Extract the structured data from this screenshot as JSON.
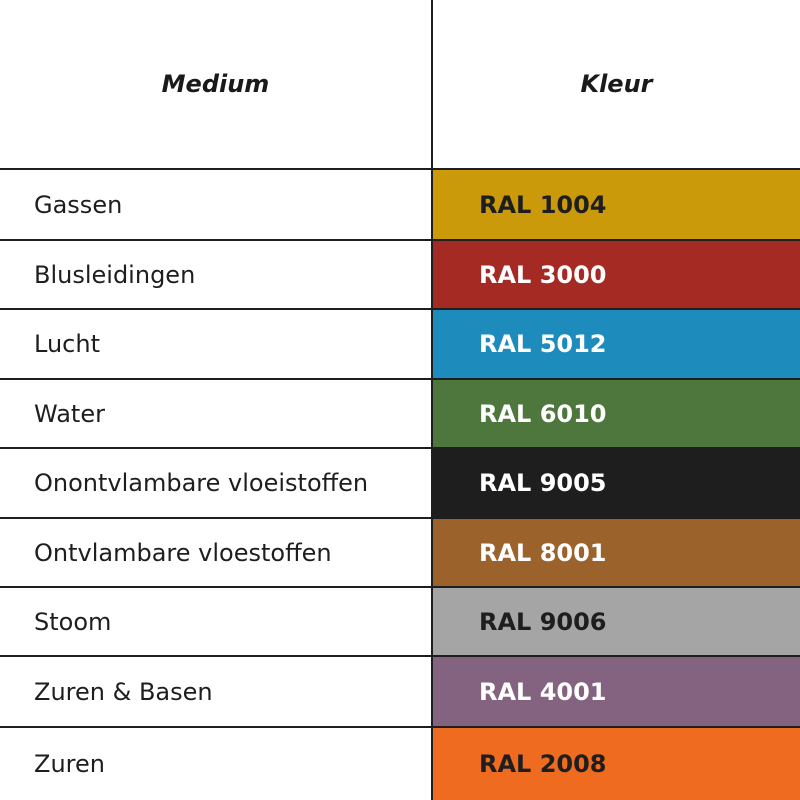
{
  "header": {
    "medium": "Medium",
    "kleur": "Kleur"
  },
  "rows": [
    {
      "medium": "Gassen",
      "ral": "RAL 1004",
      "color": "#cb9a0a",
      "text_color": "#1e1e1e"
    },
    {
      "medium": "Blusleidingen",
      "ral": "RAL 3000",
      "color": "#a52a24",
      "text_color": "#ffffff"
    },
    {
      "medium": "Lucht",
      "ral": "RAL 5012",
      "color": "#1e8bbd",
      "text_color": "#ffffff"
    },
    {
      "medium": "Water",
      "ral": "RAL 6010",
      "color": "#4e773d",
      "text_color": "#ffffff"
    },
    {
      "medium": "Onontvlambare vloeistoffen",
      "ral": "RAL 9005",
      "color": "#1e1e1e",
      "text_color": "#ffffff"
    },
    {
      "medium": "Ontvlambare vloestoffen",
      "ral": "RAL 8001",
      "color": "#9c622c",
      "text_color": "#ffffff"
    },
    {
      "medium": "Stoom",
      "ral": "RAL 9006",
      "color": "#a5a5a5",
      "text_color": "#1e1e1e"
    },
    {
      "medium": "Zuren & Basen",
      "ral": "RAL 4001",
      "color": "#83637f",
      "text_color": "#ffffff"
    },
    {
      "medium": "Zuren",
      "ral": "RAL 2008",
      "color": "#ee6b1f",
      "text_color": "#1e1e1e"
    }
  ]
}
